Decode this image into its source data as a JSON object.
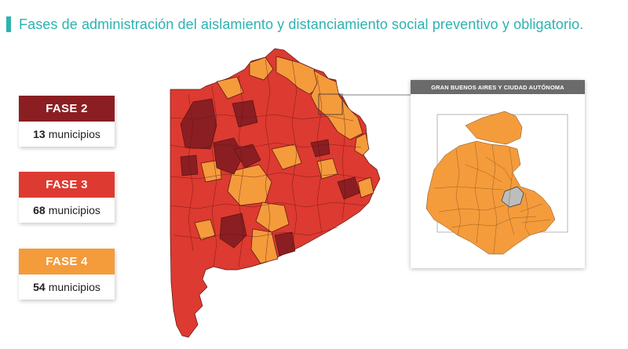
{
  "title": "Fases de administración del aislamiento y distanciamiento social preventivo y obligatorio.",
  "colors": {
    "accent": "#2bb3b1",
    "fase2": "#8b1e22",
    "fase3": "#dd3a31",
    "fase4": "#f49b3c",
    "inset_header": "#6b6b6b"
  },
  "legend": [
    {
      "label": "FASE 2",
      "count": "13",
      "unit": "municipios"
    },
    {
      "label": "FASE 3",
      "count": "68",
      "unit": "municipios"
    },
    {
      "label": "FASE 4",
      "count": "54",
      "unit": "municipios"
    }
  ],
  "inset": {
    "title": "GRAN BUENOS AIRES Y CIUDAD AUTÓNOMA"
  }
}
